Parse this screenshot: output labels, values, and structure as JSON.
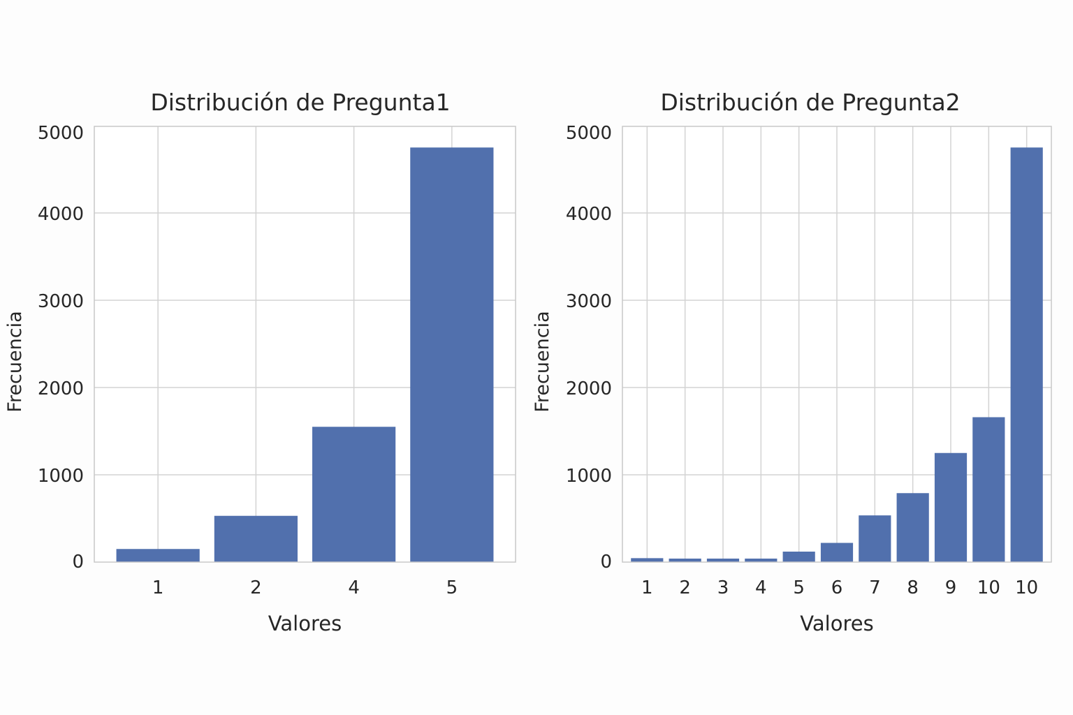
{
  "chart_data": [
    {
      "type": "bar",
      "title": "Distribución de Pregunta1",
      "xlabel": "Valores",
      "ylabel": "Frecuencia",
      "categories": [
        "1",
        "2",
        "4",
        "5"
      ],
      "values": [
        150,
        530,
        1550,
        4750
      ],
      "ylim": [
        0,
        5000
      ],
      "yticks": [
        "0",
        "1000",
        "2000",
        "3000",
        "4000",
        "5000"
      ],
      "grid": true,
      "color": "#5170ad"
    },
    {
      "type": "bar",
      "title": "Distribución de Pregunta2",
      "xlabel": "Valores",
      "ylabel": "Frecuencia",
      "categories": [
        "1",
        "2",
        "3",
        "4",
        "5",
        "6",
        "7",
        "8",
        "9",
        "10",
        "10"
      ],
      "values": [
        45,
        40,
        40,
        40,
        120,
        220,
        535,
        790,
        1250,
        1660,
        4750
      ],
      "ylim": [
        0,
        5000
      ],
      "yticks": [
        "0",
        "1000",
        "2000",
        "3000",
        "4000",
        "5000"
      ],
      "grid": true,
      "color": "#5170ad"
    }
  ]
}
